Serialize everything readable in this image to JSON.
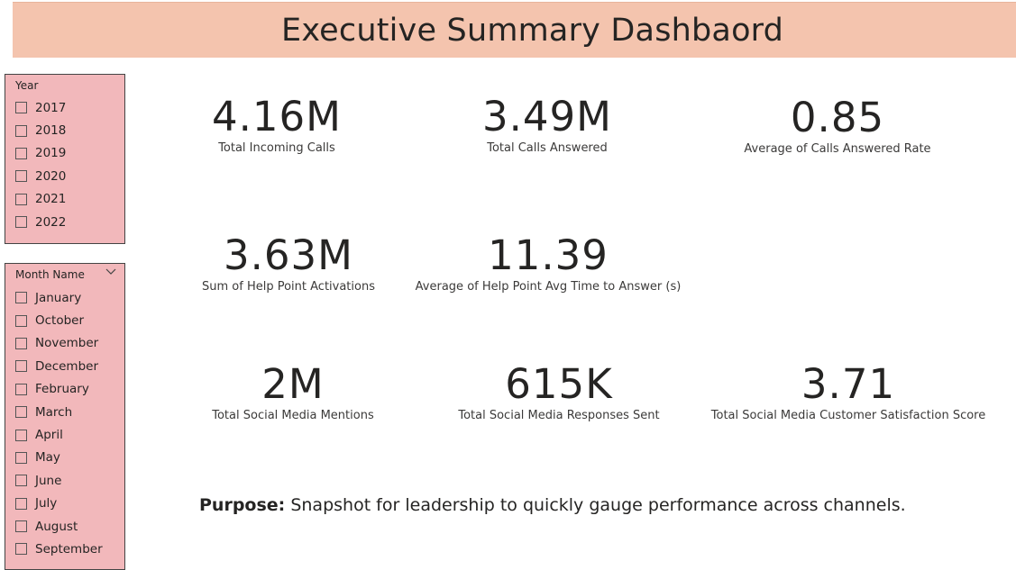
{
  "header": {
    "title": "Executive Summary Dashbaord"
  },
  "year_slicer": {
    "title": "Year",
    "items": [
      "2017",
      "2018",
      "2019",
      "2020",
      "2021",
      "2022"
    ]
  },
  "month_slicer": {
    "title": "Month Name",
    "items": [
      "January",
      "October",
      "November",
      "December",
      "February",
      "March",
      "April",
      "May",
      "June",
      "July",
      "August",
      "September"
    ]
  },
  "kpis": [
    {
      "value": "4.16M",
      "label": "Total Incoming Calls"
    },
    {
      "value": "3.49M",
      "label": "Total Calls Answered"
    },
    {
      "value": "0.85",
      "label": "Average of Calls Answered Rate"
    },
    {
      "value": "3.63M",
      "label": "Sum of Help Point Activations"
    },
    {
      "value": "11.39",
      "label": "Average of Help Point Avg Time to Answer (s)"
    },
    {
      "value": "2M",
      "label": "Total Social Media Mentions"
    },
    {
      "value": "615K",
      "label": "Total Social Media Responses Sent"
    },
    {
      "value": "3.71",
      "label": "Total Social Media Customer Satisfaction Score"
    }
  ],
  "purpose": {
    "label": "Purpose:",
    "text": " Snapshot for leadership to quickly gauge performance across channels."
  },
  "colors": {
    "header_bg": "#f4c4ae",
    "slicer_bg": "#f2b8bb",
    "text": "#252423"
  },
  "icons": {
    "month_dropdown": "chevron-down-icon"
  }
}
